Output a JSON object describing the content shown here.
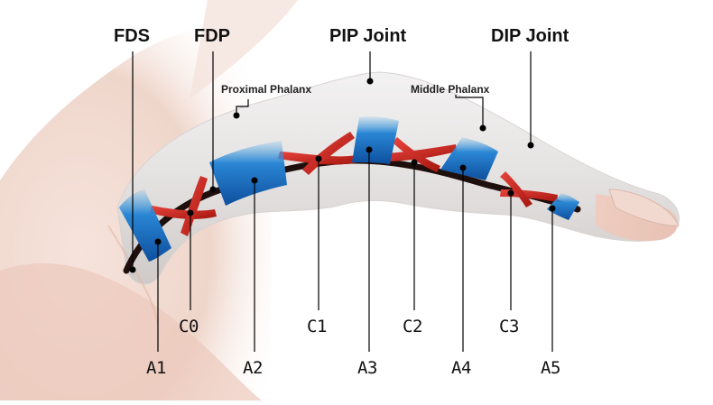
{
  "labels": {
    "fds": "FDS",
    "fdp": "FDP",
    "pip_joint": "PIP Joint",
    "dip_joint": "DIP Joint",
    "proximal_phalanx": "Proximal Phalanx",
    "middle_phalanx": "Middle Phalanx",
    "annular": [
      "A1",
      "A2",
      "A3",
      "A4",
      "A5"
    ],
    "cruciate": [
      "C0",
      "C1",
      "C2",
      "C3"
    ]
  },
  "colors": {
    "skin": "#f1dcd3",
    "finger": "#e6e4e3",
    "tendon": "#1f0f0c",
    "cruciate_pulley": "#cf2a24",
    "annular_pulley": "#1f72c4",
    "leader_line": "#000000"
  }
}
